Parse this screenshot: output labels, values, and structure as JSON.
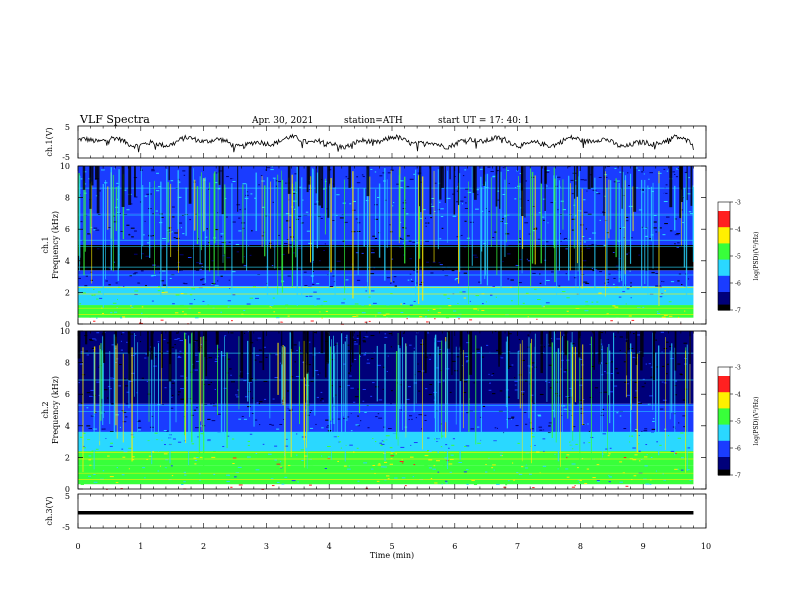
{
  "header": {
    "title": "VLF  Spectra",
    "date": "Apr. 30, 2021",
    "station": "station=ATH",
    "start": "start  UT  =   17: 40: 1"
  },
  "colors": {
    "black": "#000000",
    "navy": "#00007a",
    "blue": "#1a3cff",
    "cyan": "#2ad8ff",
    "green": "#38ff3a",
    "yellow": "#fff000",
    "red": "#ff2020",
    "white": "#ffffff"
  },
  "chart_data": [
    {
      "type": "line",
      "name": "ch1-waveform",
      "ylabel": "ch.1(V)",
      "ylim": [
        -5,
        5
      ],
      "yticks": [
        "5",
        "-5"
      ],
      "x_range_min": [
        0,
        9.8
      ],
      "level_V": 0
    },
    {
      "type": "heatmap",
      "name": "ch1-spectrogram",
      "ylabel": "ch.1\nFrequency (kHz)",
      "ylim": [
        0,
        10
      ],
      "yticks": [
        "0",
        "2",
        "4",
        "6",
        "8",
        "10"
      ],
      "x_range_min": [
        0,
        9.8
      ],
      "colorbar": {
        "label": "log(PSD)(V²/Hz)",
        "range": [
          -7,
          -3
        ],
        "ticks": [
          "-3",
          "-4",
          "-5",
          "-6",
          "-7"
        ]
      },
      "bands": [
        {
          "f": [
            0.0,
            0.4
          ],
          "level": -3.0
        },
        {
          "f": [
            0.4,
            1.2
          ],
          "level": -4.8
        },
        {
          "f": [
            1.2,
            2.4
          ],
          "level": -5.2
        },
        {
          "f": [
            2.4,
            3.4
          ],
          "level": -6.3
        },
        {
          "f": [
            3.4,
            5.0
          ],
          "level": -6.9
        },
        {
          "f": [
            5.0,
            7.0
          ],
          "level": -6.3
        },
        {
          "f": [
            7.0,
            10.0
          ],
          "level": -6.0
        }
      ]
    },
    {
      "type": "heatmap",
      "name": "ch2-spectrogram",
      "ylabel": "ch.2\nFrequency (kHz)",
      "ylim": [
        0,
        10
      ],
      "yticks": [
        "0",
        "2",
        "4",
        "6",
        "8",
        "10"
      ],
      "x_range_min": [
        0,
        9.8
      ],
      "colorbar": {
        "label": "log(PSD)(V²/Hz)",
        "range": [
          -7,
          -3
        ],
        "ticks": [
          "-3",
          "-4",
          "-5",
          "-6",
          "-7"
        ]
      },
      "bands": [
        {
          "f": [
            0.0,
            0.3
          ],
          "level": -3.0
        },
        {
          "f": [
            0.3,
            1.5
          ],
          "level": -5.0
        },
        {
          "f": [
            1.5,
            2.4
          ],
          "level": -4.6
        },
        {
          "f": [
            2.4,
            3.6
          ],
          "level": -5.4
        },
        {
          "f": [
            3.6,
            5.4
          ],
          "level": -6.2
        },
        {
          "f": [
            5.4,
            10.0
          ],
          "level": -6.5
        }
      ]
    },
    {
      "type": "line",
      "name": "ch3-waveform",
      "ylabel": "ch.3(V)",
      "ylim": [
        -5,
        5
      ],
      "yticks": [
        "5",
        "-5"
      ],
      "x_range_min": [
        0,
        9.8
      ],
      "level_V": -0.5
    }
  ],
  "xaxis": {
    "label": "Time  (min)",
    "ticks": [
      "0",
      "1",
      "2",
      "3",
      "4",
      "5",
      "6",
      "7",
      "8",
      "9",
      "10"
    ],
    "xlim": [
      0,
      10
    ]
  }
}
